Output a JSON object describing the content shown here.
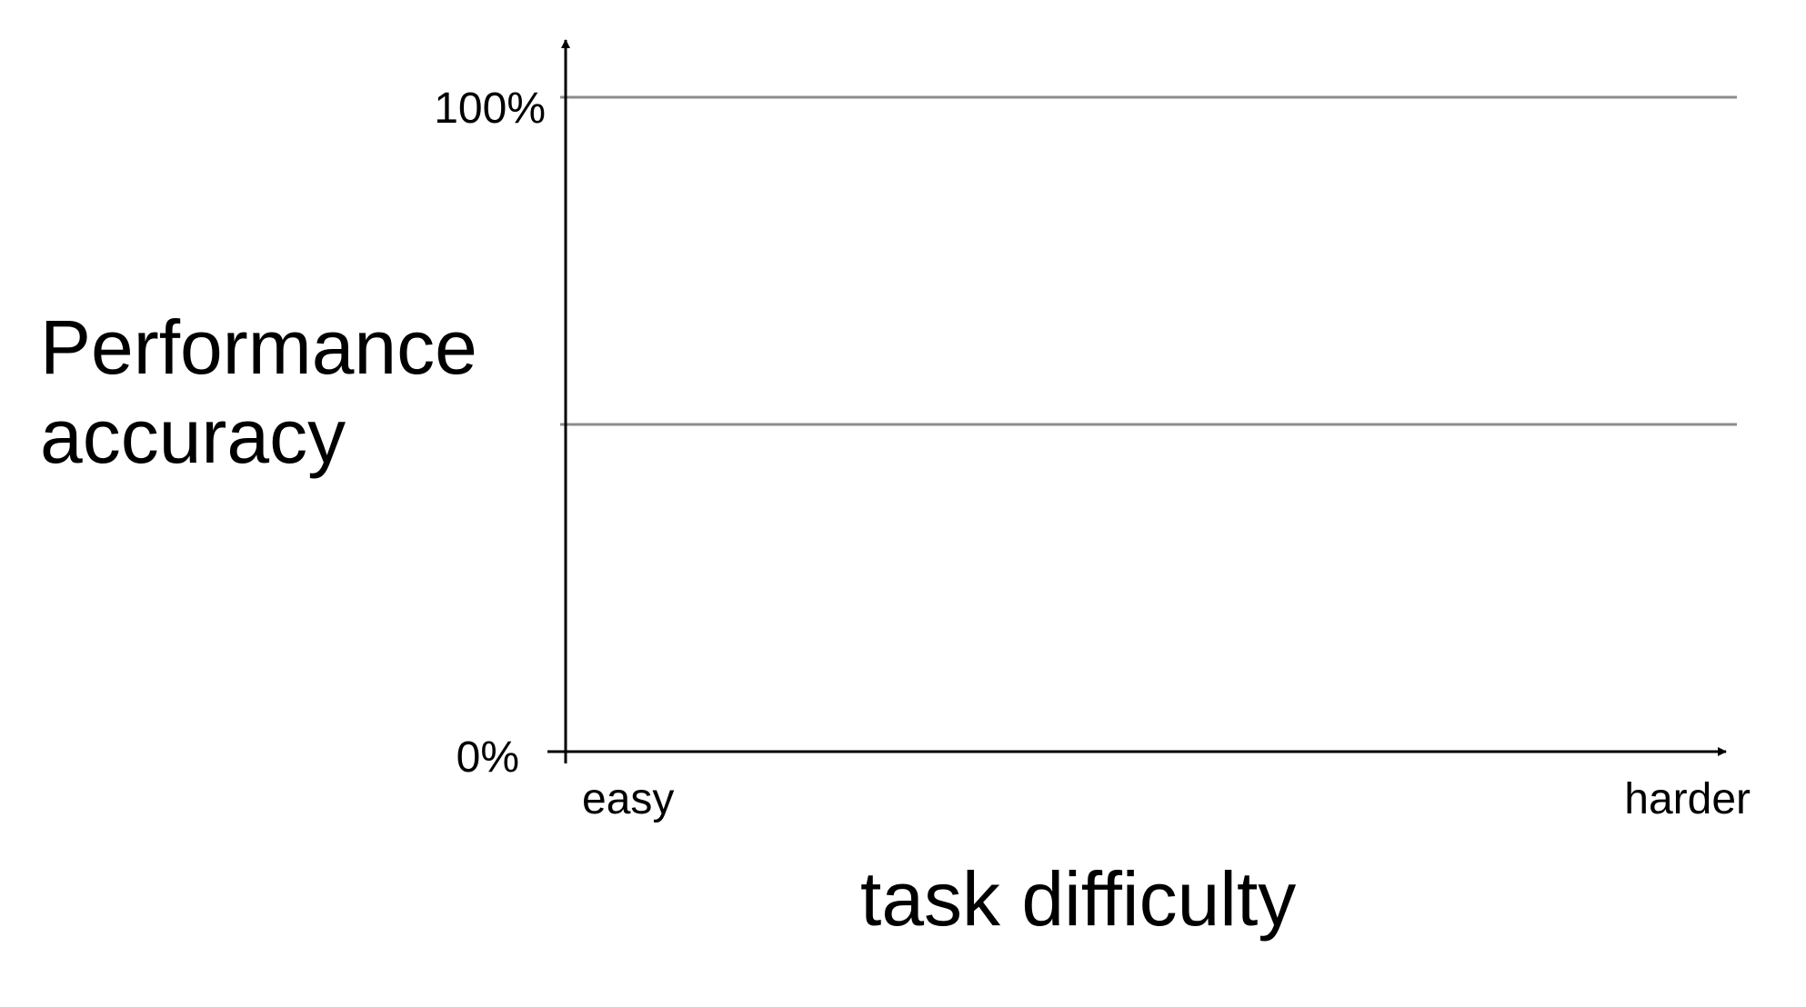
{
  "chart_data": {
    "type": "line",
    "title": "",
    "ylabel_lines": [
      "Performance",
      "accuracy"
    ],
    "xlabel": "task difficulty",
    "y_ticks": [
      "100%",
      "0%"
    ],
    "ylim": [
      0,
      100
    ],
    "gridlines_y": [
      50,
      100
    ],
    "x_categories": [
      "easy",
      "harder"
    ],
    "series": [],
    "grid": true,
    "colors": {
      "axis": "#000000",
      "gridline": "#8c8c8c"
    }
  }
}
